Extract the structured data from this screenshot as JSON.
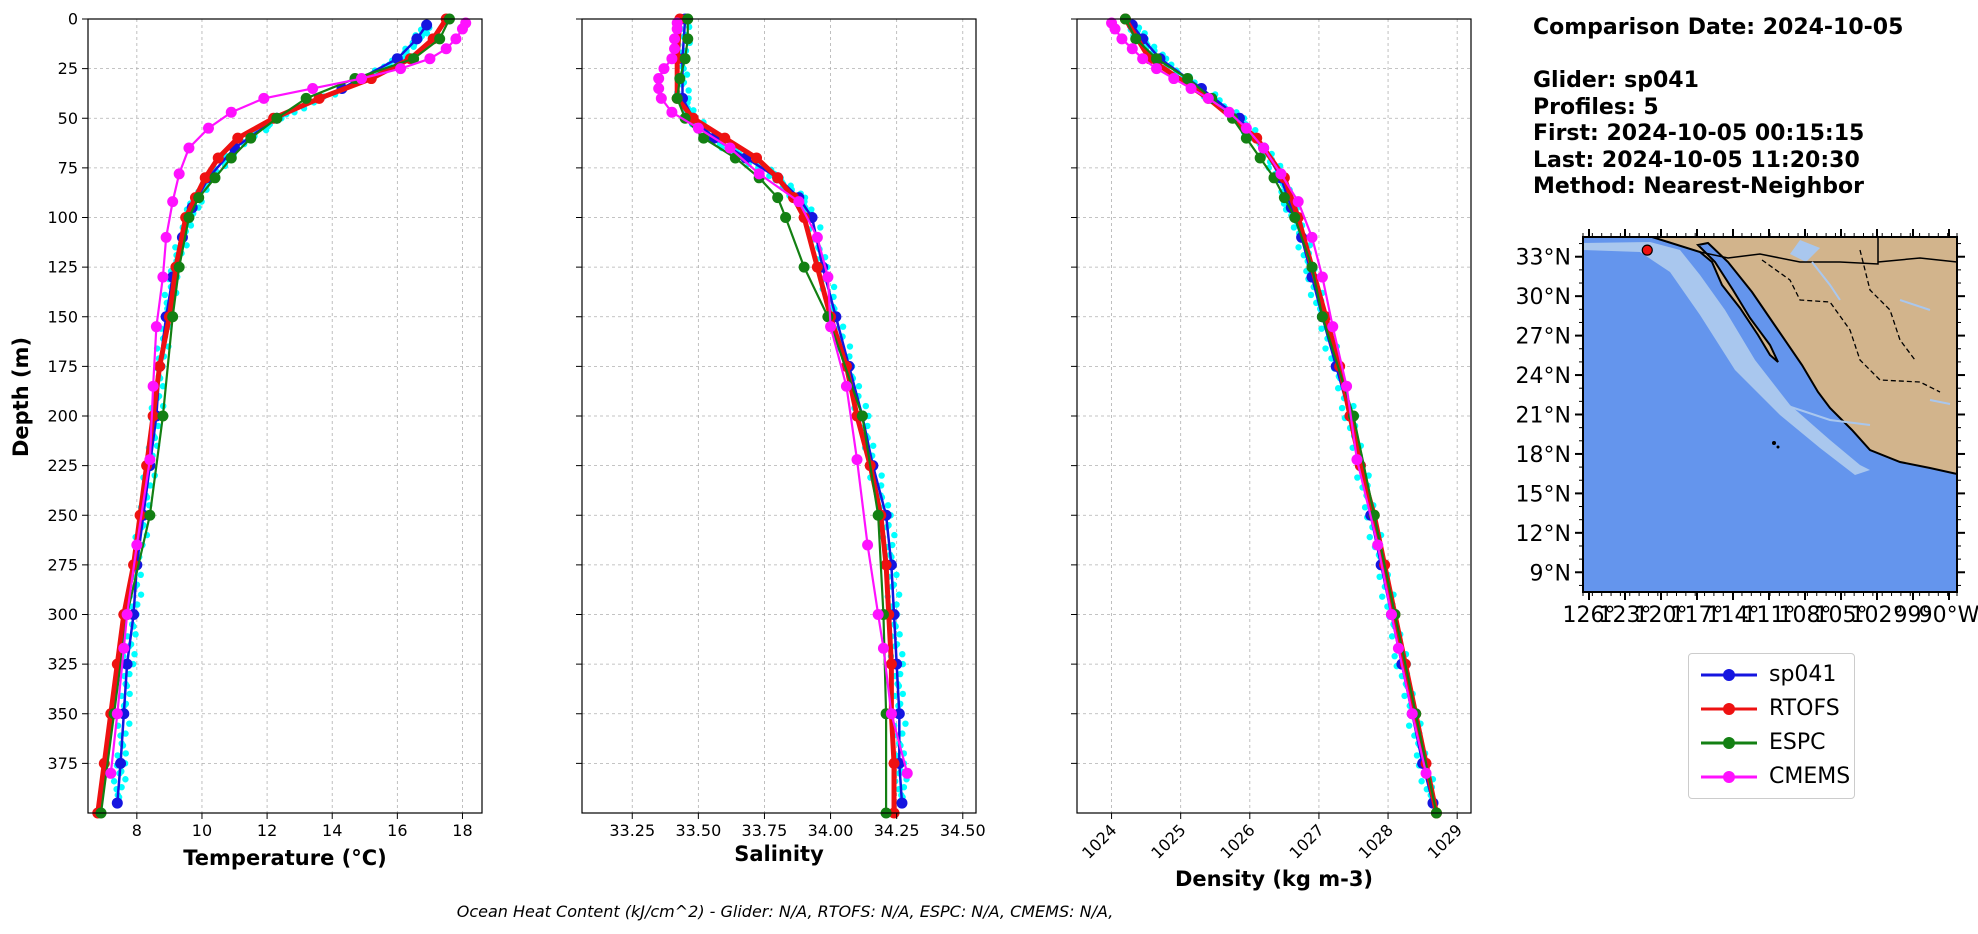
{
  "info": {
    "comparison_date": "Comparison Date: 2024-10-05",
    "glider": "Glider: sp041",
    "profiles": "Profiles: 5",
    "first": "First: 2024-10-05 00:15:15",
    "last": "Last: 2024-10-05 11:20:30",
    "method": "Method: Nearest-Neighbor"
  },
  "footer": "Ocean Heat Content (kJ/cm^2) - Glider: N/A,  RTOFS: N/A,  ESPC: N/A,  CMEMS: N/A,",
  "legend": [
    {
      "name": "sp041",
      "color": "#1515e0"
    },
    {
      "name": "RTOFS",
      "color": "#ee1111"
    },
    {
      "name": "ESPC",
      "color": "#138013"
    },
    {
      "name": "CMEMS",
      "color": "#ff11ff"
    }
  ],
  "chart_data": [
    {
      "type": "line",
      "xlabel": "Temperature (°C)",
      "ylabel": "Depth (m)",
      "xlim": [
        6.5,
        18.6
      ],
      "ylim": [
        400,
        0
      ],
      "xticks": [
        8,
        10,
        12,
        14,
        16,
        18
      ],
      "yticks": [
        0,
        25,
        50,
        75,
        100,
        125,
        150,
        175,
        200,
        225,
        250,
        275,
        300,
        325,
        350,
        375
      ],
      "grid": true,
      "series": [
        {
          "name": "sp041",
          "color": "#1515e0",
          "depth": [
            3,
            10,
            20,
            35,
            50,
            65,
            80,
            95,
            110,
            130,
            150,
            175,
            200,
            225,
            250,
            275,
            300,
            325,
            350,
            375,
            395
          ],
          "values": [
            16.9,
            16.6,
            16.0,
            14.3,
            12.3,
            11.0,
            10.2,
            9.7,
            9.4,
            9.1,
            8.9,
            8.7,
            8.6,
            8.4,
            8.2,
            8.0,
            7.9,
            7.7,
            7.6,
            7.5,
            7.4
          ]
        },
        {
          "name": "RTOFS",
          "color": "#ee1111",
          "depth": [
            0,
            10,
            20,
            30,
            40,
            50,
            60,
            70,
            80,
            90,
            100,
            125,
            150,
            175,
            200,
            225,
            250,
            275,
            300,
            325,
            350,
            375,
            400
          ],
          "values": [
            17.5,
            17.1,
            16.4,
            15.2,
            13.6,
            12.2,
            11.1,
            10.5,
            10.1,
            9.8,
            9.5,
            9.2,
            9.0,
            8.7,
            8.5,
            8.3,
            8.1,
            7.9,
            7.6,
            7.4,
            7.2,
            7.0,
            6.8
          ]
        },
        {
          "name": "ESPC",
          "color": "#138013",
          "depth": [
            0,
            10,
            20,
            30,
            40,
            50,
            60,
            70,
            80,
            90,
            100,
            125,
            150,
            200,
            250,
            300,
            350,
            400
          ],
          "values": [
            17.6,
            17.3,
            16.5,
            14.7,
            13.2,
            12.3,
            11.5,
            10.9,
            10.4,
            9.9,
            9.6,
            9.3,
            9.1,
            8.8,
            8.4,
            7.7,
            7.3,
            6.9
          ]
        },
        {
          "name": "CMEMS",
          "color": "#ff11ff",
          "depth": [
            2,
            5,
            10,
            15,
            20,
            25,
            30,
            35,
            40,
            47,
            55,
            65,
            78,
            92,
            110,
            130,
            155,
            185,
            222,
            265,
            300,
            317,
            350,
            380
          ],
          "values": [
            18.1,
            18.0,
            17.8,
            17.5,
            17.0,
            16.1,
            14.9,
            13.4,
            11.9,
            10.9,
            10.2,
            9.6,
            9.3,
            9.1,
            8.9,
            8.8,
            8.6,
            8.5,
            8.4,
            8.0,
            7.7,
            7.6,
            7.4,
            7.2
          ]
        }
      ]
    },
    {
      "type": "line",
      "xlabel": "Salinity",
      "xlim": [
        33.06,
        34.55
      ],
      "ylim": [
        400,
        0
      ],
      "xticks": [
        33.25,
        33.5,
        33.75,
        34.0,
        34.25,
        34.5
      ],
      "grid": true,
      "series": [
        {
          "name": "sp041",
          "color": "#1515e0",
          "depth": [
            0,
            20,
            40,
            50,
            60,
            70,
            80,
            90,
            100,
            125,
            150,
            175,
            200,
            225,
            250,
            275,
            300,
            325,
            350,
            375,
            395
          ],
          "values": [
            33.45,
            33.44,
            33.44,
            33.48,
            33.56,
            33.68,
            33.8,
            33.88,
            33.93,
            33.97,
            34.02,
            34.07,
            34.12,
            34.16,
            34.21,
            34.23,
            34.24,
            34.25,
            34.26,
            34.26,
            34.27
          ]
        },
        {
          "name": "RTOFS",
          "color": "#ee1111",
          "depth": [
            0,
            20,
            40,
            50,
            60,
            70,
            80,
            90,
            100,
            125,
            150,
            175,
            200,
            225,
            250,
            275,
            300,
            325,
            350,
            375,
            400
          ],
          "values": [
            33.43,
            33.42,
            33.42,
            33.48,
            33.6,
            33.72,
            33.8,
            33.86,
            33.9,
            33.95,
            34.0,
            34.06,
            34.1,
            34.15,
            34.19,
            34.21,
            34.22,
            34.23,
            34.23,
            34.24,
            34.24
          ]
        },
        {
          "name": "ESPC",
          "color": "#138013",
          "depth": [
            0,
            10,
            20,
            30,
            40,
            50,
            60,
            70,
            80,
            90,
            100,
            125,
            150,
            200,
            250,
            300,
            350,
            400
          ],
          "values": [
            33.46,
            33.46,
            33.45,
            33.43,
            33.42,
            33.45,
            33.52,
            33.64,
            33.73,
            33.8,
            33.83,
            33.9,
            33.99,
            34.12,
            34.18,
            34.2,
            34.21,
            34.21
          ]
        },
        {
          "name": "CMEMS",
          "color": "#ff11ff",
          "depth": [
            2,
            5,
            10,
            15,
            20,
            25,
            30,
            35,
            40,
            47,
            55,
            65,
            78,
            92,
            110,
            130,
            155,
            185,
            222,
            265,
            300,
            317,
            350,
            380
          ],
          "values": [
            33.42,
            33.42,
            33.41,
            33.41,
            33.4,
            33.37,
            33.35,
            33.35,
            33.36,
            33.4,
            33.5,
            33.62,
            33.73,
            33.88,
            33.95,
            33.99,
            34.0,
            34.06,
            34.1,
            34.14,
            34.18,
            34.2,
            34.23,
            34.29
          ]
        }
      ]
    },
    {
      "type": "line",
      "xlabel": "Density (kg m-3)",
      "xlim": [
        1023.5,
        1029.2
      ],
      "ylim": [
        400,
        0
      ],
      "xticks": [
        1024,
        1025,
        1026,
        1027,
        1028,
        1029
      ],
      "grid": true,
      "series": [
        {
          "name": "sp041",
          "color": "#1515e0",
          "depth": [
            3,
            10,
            20,
            35,
            50,
            65,
            80,
            95,
            110,
            130,
            150,
            175,
            200,
            225,
            250,
            275,
            300,
            325,
            350,
            375,
            395
          ],
          "values": [
            1024.3,
            1024.45,
            1024.7,
            1025.3,
            1025.85,
            1026.2,
            1026.45,
            1026.6,
            1026.75,
            1026.9,
            1027.05,
            1027.25,
            1027.45,
            1027.6,
            1027.75,
            1027.9,
            1028.05,
            1028.2,
            1028.35,
            1028.5,
            1028.65
          ]
        },
        {
          "name": "RTOFS",
          "color": "#ee1111",
          "depth": [
            0,
            20,
            40,
            60,
            80,
            100,
            125,
            150,
            175,
            200,
            225,
            250,
            275,
            300,
            325,
            350,
            375,
            400
          ],
          "values": [
            1024.2,
            1024.55,
            1025.4,
            1026.1,
            1026.5,
            1026.7,
            1026.9,
            1027.1,
            1027.3,
            1027.45,
            1027.6,
            1027.8,
            1027.95,
            1028.1,
            1028.25,
            1028.4,
            1028.55,
            1028.7
          ]
        },
        {
          "name": "ESPC",
          "color": "#138013",
          "depth": [
            0,
            10,
            20,
            30,
            40,
            50,
            60,
            70,
            80,
            90,
            100,
            125,
            150,
            200,
            250,
            300,
            350,
            400
          ],
          "values": [
            1024.2,
            1024.35,
            1024.65,
            1025.1,
            1025.45,
            1025.75,
            1025.95,
            1026.15,
            1026.35,
            1026.5,
            1026.65,
            1026.9,
            1027.05,
            1027.5,
            1027.8,
            1028.1,
            1028.4,
            1028.7
          ]
        },
        {
          "name": "CMEMS",
          "color": "#ff11ff",
          "depth": [
            2,
            5,
            10,
            15,
            20,
            25,
            30,
            35,
            40,
            47,
            55,
            65,
            78,
            92,
            110,
            130,
            155,
            185,
            222,
            265,
            300,
            317,
            350,
            380
          ],
          "values": [
            1024.0,
            1024.05,
            1024.15,
            1024.3,
            1024.45,
            1024.65,
            1024.9,
            1025.15,
            1025.4,
            1025.7,
            1025.95,
            1026.2,
            1026.45,
            1026.7,
            1026.9,
            1027.05,
            1027.2,
            1027.4,
            1027.55,
            1027.85,
            1028.05,
            1028.15,
            1028.35,
            1028.55
          ]
        }
      ]
    },
    {
      "type": "map",
      "xlim": [
        -126,
        -87
      ],
      "ylim": [
        7.5,
        34.5
      ],
      "yticks": [
        33,
        30,
        27,
        24,
        21,
        18,
        15,
        12,
        9
      ],
      "ytick_labels": [
        "33°N",
        "30°N",
        "27°N",
        "24°N",
        "21°N",
        "18°N",
        "15°N",
        "12°N",
        "9°N"
      ],
      "xtick_labels": [
        "126°",
        "123°",
        "120°",
        "117°",
        "114°",
        "111°",
        "108°",
        "105°",
        "102°",
        "99°",
        "90°W"
      ],
      "ocean_color": "#6495ed",
      "land_color": "#d2b48c",
      "glider_position": {
        "lon": -119.3,
        "lat": 33.5,
        "color": "#ee1111"
      }
    }
  ]
}
